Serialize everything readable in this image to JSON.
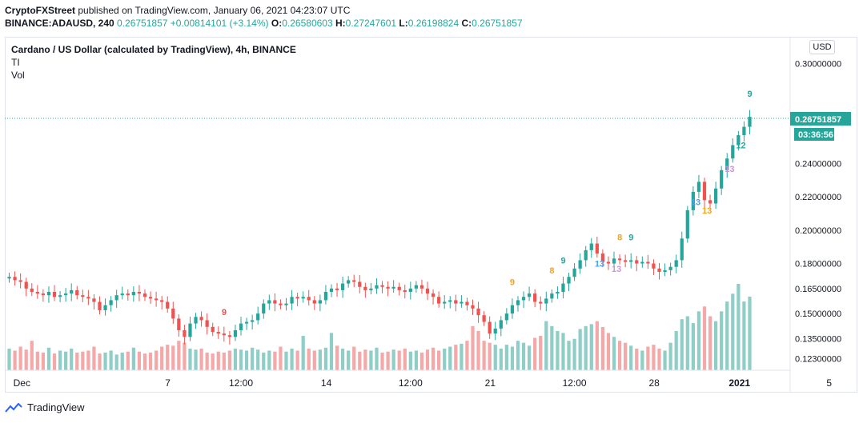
{
  "header": {
    "publisher": "CryptoFXStreet",
    "publish_text": "published on TradingView.com, January 06, 2021 04:23:07 UTC"
  },
  "ohlc": {
    "symbol": "BINANCE:ADAUSD, 240",
    "last": "0.26751857",
    "change": "+0.00814101 (+3.14%)",
    "o_label": "O:",
    "o": "0.26580603",
    "h_label": "H:",
    "h": "0.27247601",
    "l_label": "L:",
    "l": "0.26198824",
    "c_label": "C:",
    "c": "0.26751857"
  },
  "legend": {
    "title": "Cardano / US Dollar (calculated by TradingView), 4h, BINANCE",
    "indicator1": "TI",
    "indicator2": "Vol"
  },
  "currency_button": "USD",
  "price_badge": "0.26751857",
  "countdown_badge": "03:36:56",
  "footer": {
    "brand": "TradingView"
  },
  "colors": {
    "up": "#26a69a",
    "down": "#ef5350",
    "vol_up": "#8fcec6",
    "vol_down": "#f4a9a8",
    "td_red": "#ef5350",
    "td_green": "#26a69a",
    "td_orange": "#f7a21b",
    "td_blue": "#42a5f5",
    "td_purple": "#ce93d8"
  },
  "chart_data": {
    "type": "candlestick",
    "title": "Cardano / US Dollar (calculated by TradingView), 4h, BINANCE",
    "y_ticks": [
      "0.30000000",
      "0.24000000",
      "0.22000000",
      "0.20000000",
      "0.18000000",
      "0.16500000",
      "0.15000000",
      "0.13500000",
      "0.12300000"
    ],
    "y_tick_values": [
      0.3,
      0.24,
      0.22,
      0.2,
      0.18,
      0.165,
      0.15,
      0.135,
      0.123
    ],
    "ylim": [
      0.116,
      0.316
    ],
    "x_ticks": [
      "Dec",
      "7",
      "12:00",
      "14",
      "12:00",
      "21",
      "12:00",
      "28",
      "2021",
      "5"
    ],
    "x_tick_positions": [
      2,
      28,
      41,
      56,
      71,
      85,
      100,
      114,
      129,
      145
    ],
    "last_price": 0.26751857,
    "closes": [
      0.172,
      0.17,
      0.169,
      0.165,
      0.163,
      0.162,
      0.161,
      0.163,
      0.16,
      0.161,
      0.162,
      0.164,
      0.161,
      0.16,
      0.159,
      0.157,
      0.152,
      0.155,
      0.158,
      0.161,
      0.162,
      0.161,
      0.163,
      0.162,
      0.16,
      0.159,
      0.158,
      0.157,
      0.153,
      0.147,
      0.14,
      0.136,
      0.144,
      0.148,
      0.146,
      0.142,
      0.139,
      0.138,
      0.137,
      0.136,
      0.14,
      0.144,
      0.145,
      0.146,
      0.15,
      0.156,
      0.158,
      0.156,
      0.155,
      0.156,
      0.16,
      0.159,
      0.16,
      0.158,
      0.156,
      0.158,
      0.163,
      0.165,
      0.164,
      0.168,
      0.17,
      0.169,
      0.166,
      0.164,
      0.165,
      0.167,
      0.166,
      0.165,
      0.166,
      0.164,
      0.163,
      0.165,
      0.167,
      0.165,
      0.162,
      0.16,
      0.156,
      0.157,
      0.158,
      0.156,
      0.157,
      0.155,
      0.153,
      0.149,
      0.145,
      0.138,
      0.141,
      0.146,
      0.15,
      0.155,
      0.158,
      0.16,
      0.162,
      0.157,
      0.156,
      0.159,
      0.162,
      0.163,
      0.168,
      0.172,
      0.177,
      0.182,
      0.188,
      0.192,
      0.186,
      0.181,
      0.18,
      0.183,
      0.182,
      0.181,
      0.182,
      0.18,
      0.181,
      0.18,
      0.177,
      0.175,
      0.176,
      0.178,
      0.182,
      0.195,
      0.212,
      0.223,
      0.229,
      0.218,
      0.216,
      0.225,
      0.236,
      0.243,
      0.251,
      0.257,
      0.262,
      0.268
    ],
    "volumes": [
      22,
      20,
      24,
      21,
      30,
      19,
      18,
      23,
      17,
      20,
      19,
      22,
      18,
      19,
      20,
      24,
      17,
      18,
      20,
      16,
      18,
      19,
      23,
      19,
      17,
      18,
      20,
      24,
      26,
      25,
      30,
      28,
      22,
      21,
      22,
      18,
      17,
      19,
      18,
      20,
      22,
      21,
      20,
      23,
      21,
      18,
      20,
      19,
      24,
      19,
      22,
      20,
      35,
      22,
      20,
      21,
      23,
      38,
      25,
      22,
      20,
      24,
      19,
      21,
      20,
      23,
      18,
      19,
      21,
      20,
      22,
      19,
      20,
      18,
      21,
      23,
      20,
      22,
      24,
      26,
      27,
      30,
      45,
      40,
      30,
      28,
      26,
      22,
      26,
      24,
      30,
      28,
      25,
      33,
      35,
      50,
      45,
      40,
      38,
      30,
      32,
      42,
      45,
      47,
      50,
      44,
      38,
      34,
      30,
      28,
      25,
      22,
      20,
      24,
      26,
      22,
      20,
      28,
      40,
      52,
      55,
      48,
      60,
      65,
      55,
      50,
      60,
      70,
      78,
      88,
      70,
      75
    ],
    "td_labels": [
      {
        "i": 38,
        "text": "9",
        "pos": "above",
        "color": "td_red"
      },
      {
        "i": 89,
        "text": "9",
        "pos": "above",
        "color": "td_orange"
      },
      {
        "i": 96,
        "text": "8",
        "pos": "above",
        "color": "td_orange"
      },
      {
        "i": 98,
        "text": "9",
        "pos": "above",
        "color": "td_green"
      },
      {
        "i": 104,
        "text": "13",
        "pos": "below",
        "color": "td_blue"
      },
      {
        "i": 107,
        "text": "13",
        "pos": "below",
        "color": "td_purple"
      },
      {
        "i": 108,
        "text": "8",
        "pos": "above",
        "color": "td_orange"
      },
      {
        "i": 110,
        "text": "9",
        "pos": "above",
        "color": "td_green"
      },
      {
        "i": 121,
        "text": "13",
        "pos": "below",
        "color": "td_blue"
      },
      {
        "i": 123,
        "text": "13",
        "pos": "below",
        "color": "td_orange"
      },
      {
        "i": 127,
        "text": "13",
        "pos": "below",
        "color": "td_purple"
      },
      {
        "i": 129,
        "text": "12",
        "pos": "below",
        "color": "td_green"
      },
      {
        "i": 131,
        "text": "9",
        "pos": "above",
        "color": "td_green"
      }
    ]
  }
}
